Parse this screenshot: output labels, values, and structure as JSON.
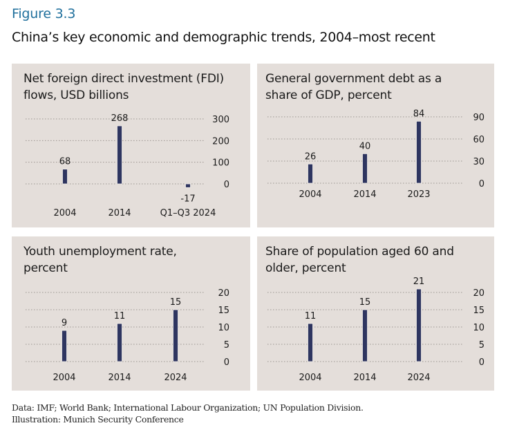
{
  "figure": {
    "label": "Figure 3.3",
    "title": "China’s key economic and demographic trends, 2004–most recent",
    "source_line1": "Data: IMF; World Bank; International Labour Organization; UN Population Division.",
    "source_line2": "Illustration: Munich Security Conference"
  },
  "colors": {
    "bar": "#2e3560",
    "panel_bg": "#e4deda",
    "grid": "#9a9590",
    "accent": "#1f6f9c"
  },
  "chart_data": [
    {
      "type": "bar",
      "title": "Net foreign direct investment (FDI) flows, USD billions",
      "title_lines": [
        "Net foreign direct investment (FDI)",
        "flows, USD billions"
      ],
      "categories": [
        "2004",
        "2014",
        "Q1–Q3 2024"
      ],
      "values": [
        68,
        268,
        -17
      ],
      "labels": [
        "68",
        "268",
        "-17"
      ],
      "yticks": [
        0,
        100,
        200,
        300
      ],
      "ylim": [
        0,
        300
      ],
      "ylabel": "",
      "xlabel": "",
      "grid": true,
      "y_axis_side": "right"
    },
    {
      "type": "bar",
      "title": "General government debt as a share of GDP, percent",
      "title_lines": [
        "General government debt as a",
        "share of GDP, percent"
      ],
      "categories": [
        "2004",
        "2014",
        "2023"
      ],
      "values": [
        26,
        40,
        84
      ],
      "labels": [
        "26",
        "40",
        "84"
      ],
      "yticks": [
        0,
        30,
        60,
        90
      ],
      "ylim": [
        0,
        90
      ],
      "ylabel": "",
      "xlabel": "",
      "grid": true,
      "y_axis_side": "right"
    },
    {
      "type": "bar",
      "title": "Youth unemployment rate, percent",
      "title_lines": [
        "Youth unemployment rate,",
        "percent"
      ],
      "categories": [
        "2004",
        "2014",
        "2024"
      ],
      "values": [
        9,
        11,
        15
      ],
      "labels": [
        "9",
        "11",
        "15"
      ],
      "yticks": [
        0,
        5,
        10,
        15,
        20
      ],
      "ylim": [
        0,
        20
      ],
      "ylabel": "",
      "xlabel": "",
      "grid": true,
      "y_axis_side": "right"
    },
    {
      "type": "bar",
      "title": "Share of population aged 60 and older, percent",
      "title_lines": [
        "Share of population aged 60 and",
        "older, percent"
      ],
      "categories": [
        "2004",
        "2014",
        "2024"
      ],
      "values": [
        11,
        15,
        21
      ],
      "labels": [
        "11",
        "15",
        "21"
      ],
      "yticks": [
        0,
        5,
        10,
        15,
        20
      ],
      "ylim": [
        0,
        20
      ],
      "ylabel": "",
      "xlabel": "",
      "grid": true,
      "y_axis_side": "right"
    }
  ]
}
